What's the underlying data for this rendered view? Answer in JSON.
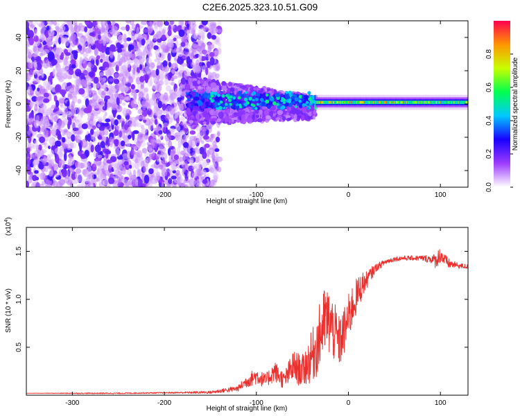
{
  "title": "C2E6.2025.323.10.51.G09",
  "colors": {
    "snr_line": "#e8312e",
    "spectrogram_base": "#7a1cf0"
  },
  "chart_data": [
    {
      "type": "heatmap",
      "xlabel": "Height of straight line (km)",
      "ylabel": "Frequency (Hz)",
      "xlim": [
        -350,
        130
      ],
      "ylim": [
        -50,
        50
      ],
      "x_ticks": [
        -300,
        -200,
        -100,
        0,
        100
      ],
      "y_ticks": [
        -40,
        -20,
        0,
        20,
        40
      ],
      "colorbar": {
        "label": "Normalized spectral amplitude",
        "range": [
          0,
          1
        ],
        "ticks": [
          0.0,
          0.2,
          0.4,
          0.6,
          0.8
        ],
        "colors": [
          "#ffffff",
          "#9d3cff",
          "#1a00ff",
          "#00c8ff",
          "#00ff50",
          "#c8ff00",
          "#ff9600",
          "#ff0050"
        ]
      },
      "regions": [
        {
          "x_range": [
            -350,
            -140
          ],
          "freq_spread": 50,
          "amplitude": 0.12
        },
        {
          "x_range": [
            -175,
            -35
          ],
          "freq_center": 2,
          "freq_spread": 14,
          "amplitude": 0.22
        },
        {
          "x_range": [
            -35,
            130
          ],
          "freq_center": 1,
          "freq_spread": 3,
          "amplitude": 0.55
        }
      ]
    },
    {
      "type": "line",
      "xlabel": "Height of straight line (km)",
      "ylabel": "SNR (10 * v/v)",
      "y_scale_label": "(x10",
      "y_scale_exp": "4",
      "y_scale_close": ")",
      "xlim": [
        -350,
        130
      ],
      "ylim": [
        0,
        17500
      ],
      "x_ticks": [
        -300,
        -200,
        -100,
        0,
        100
      ],
      "y_ticks": [
        5000,
        10000,
        15000
      ],
      "y_tick_labels": [
        "0.5",
        "1.0",
        "1.5"
      ],
      "series": [
        {
          "x": [
            -350,
            -300,
            -250,
            -200,
            -150,
            -120,
            -110,
            -100,
            -90,
            -80,
            -70,
            -60,
            -50,
            -40,
            -35,
            -30,
            -25,
            -20,
            -15,
            -10,
            -5,
            0,
            5,
            10,
            15,
            20,
            25,
            30,
            40,
            50,
            60,
            70,
            80,
            90,
            95,
            100,
            105,
            110,
            115,
            120,
            130
          ],
          "y": [
            200,
            200,
            200,
            250,
            300,
            700,
            1500,
            2000,
            1500,
            2500,
            1500,
            3000,
            2500,
            4000,
            5000,
            6500,
            8000,
            7500,
            6500,
            5500,
            6500,
            8000,
            9500,
            10500,
            11500,
            12000,
            12700,
            13300,
            13900,
            14200,
            14300,
            14300,
            14300,
            14200,
            14000,
            14700,
            14000,
            13700,
            13600,
            13500,
            13400
          ],
          "noise": [
            0,
            50,
            60,
            60,
            150,
            300,
            700,
            900,
            700,
            1100,
            900,
            1700,
            1700,
            2700,
            3200,
            3600,
            3600,
            3600,
            3100,
            2800,
            2600,
            2500,
            2300,
            1800,
            1400,
            900,
            700,
            400,
            300,
            250,
            250,
            250,
            300,
            450,
            800,
            900,
            700,
            500,
            350,
            300,
            250
          ]
        }
      ]
    }
  ]
}
